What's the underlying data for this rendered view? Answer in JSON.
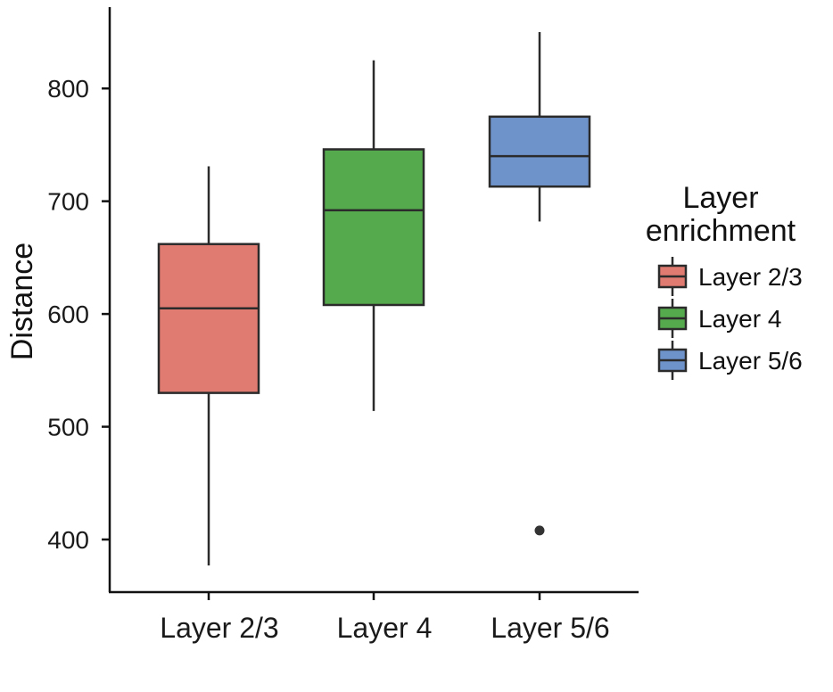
{
  "chart_data": {
    "type": "boxplot",
    "ylabel": "Distance",
    "xlabel": "",
    "yticks": [
      400,
      500,
      600,
      700,
      800
    ],
    "ylim": [
      375,
      870
    ],
    "grid": false,
    "legend": {
      "title": "Layer\nenrichment",
      "placement": "right"
    },
    "categories": [
      "Layer 2/3",
      "Layer 4",
      "Layer 5/6"
    ],
    "series": [
      {
        "name": "Layer 2/3",
        "color": "#DF7B70",
        "min": 377,
        "q1": 530,
        "median": 605,
        "q3": 662,
        "max": 731,
        "outliers": []
      },
      {
        "name": "Layer 4",
        "color": "#55AA4E",
        "min": 514,
        "q1": 608,
        "median": 692,
        "q3": 746,
        "max": 825,
        "outliers": []
      },
      {
        "name": "Layer 5/6",
        "color": "#6E93CB",
        "min": 682,
        "q1": 713,
        "median": 740,
        "q3": 775,
        "max": 850,
        "outliers": [
          408
        ]
      }
    ]
  }
}
